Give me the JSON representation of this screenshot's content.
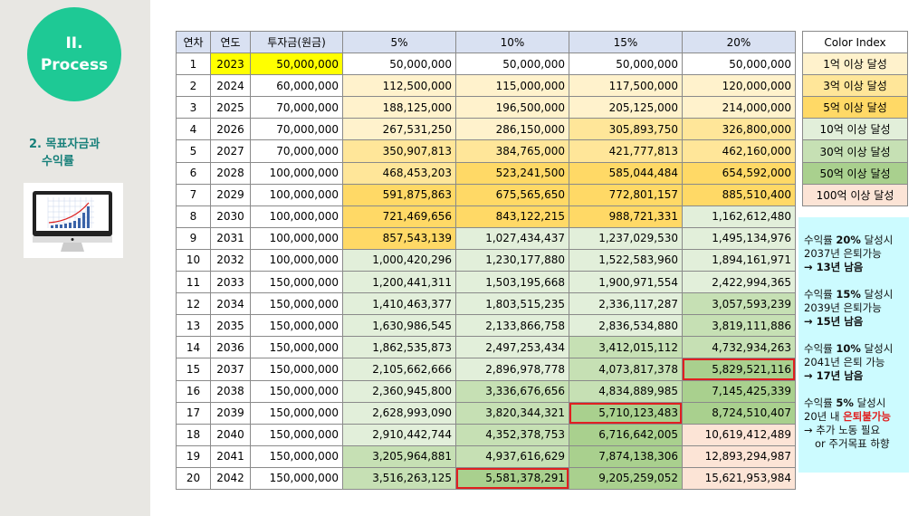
{
  "sidebar": {
    "section": "II.",
    "section_title": "Process",
    "subtitle_1": "2. 목표자금과",
    "subtitle_2": "수익률"
  },
  "table": {
    "headers": [
      "연차",
      "연도",
      "투자금(원금)",
      "5%",
      "10%",
      "15%",
      "20%"
    ],
    "rows": [
      [
        "1",
        "2023",
        "50,000,000",
        "50,000,000",
        "50,000,000",
        "50,000,000",
        "50,000,000"
      ],
      [
        "2",
        "2024",
        "60,000,000",
        "112,500,000",
        "115,000,000",
        "117,500,000",
        "120,000,000"
      ],
      [
        "3",
        "2025",
        "70,000,000",
        "188,125,000",
        "196,500,000",
        "205,125,000",
        "214,000,000"
      ],
      [
        "4",
        "2026",
        "70,000,000",
        "267,531,250",
        "286,150,000",
        "305,893,750",
        "326,800,000"
      ],
      [
        "5",
        "2027",
        "70,000,000",
        "350,907,813",
        "384,765,000",
        "421,777,813",
        "462,160,000"
      ],
      [
        "6",
        "2028",
        "100,000,000",
        "468,453,203",
        "523,241,500",
        "585,044,484",
        "654,592,000"
      ],
      [
        "7",
        "2029",
        "100,000,000",
        "591,875,863",
        "675,565,650",
        "772,801,157",
        "885,510,400"
      ],
      [
        "8",
        "2030",
        "100,000,000",
        "721,469,656",
        "843,122,215",
        "988,721,331",
        "1,162,612,480"
      ],
      [
        "9",
        "2031",
        "100,000,000",
        "857,543,139",
        "1,027,434,437",
        "1,237,029,530",
        "1,495,134,976"
      ],
      [
        "10",
        "2032",
        "100,000,000",
        "1,000,420,296",
        "1,230,177,880",
        "1,522,583,960",
        "1,894,161,971"
      ],
      [
        "11",
        "2033",
        "150,000,000",
        "1,200,441,311",
        "1,503,195,668",
        "1,900,971,554",
        "2,422,994,365"
      ],
      [
        "12",
        "2034",
        "150,000,000",
        "1,410,463,377",
        "1,803,515,235",
        "2,336,117,287",
        "3,057,593,239"
      ],
      [
        "13",
        "2035",
        "150,000,000",
        "1,630,986,545",
        "2,133,866,758",
        "2,836,534,880",
        "3,819,111,886"
      ],
      [
        "14",
        "2036",
        "150,000,000",
        "1,862,535,873",
        "2,497,253,434",
        "3,412,015,112",
        "4,732,934,263"
      ],
      [
        "15",
        "2037",
        "150,000,000",
        "2,105,662,666",
        "2,896,978,778",
        "4,073,817,378",
        "5,829,521,116"
      ],
      [
        "16",
        "2038",
        "150,000,000",
        "2,360,945,800",
        "3,336,676,656",
        "4,834,889,985",
        "7,145,425,339"
      ],
      [
        "17",
        "2039",
        "150,000,000",
        "2,628,993,090",
        "3,820,344,321",
        "5,710,123,483",
        "8,724,510,407"
      ],
      [
        "18",
        "2040",
        "150,000,000",
        "2,910,442,744",
        "4,352,378,753",
        "6,716,642,005",
        "10,619,412,489"
      ],
      [
        "19",
        "2041",
        "150,000,000",
        "3,205,964,881",
        "4,937,616,629",
        "7,874,138,306",
        "12,893,294,987"
      ],
      [
        "20",
        "2042",
        "150,000,000",
        "3,516,263,125",
        "5,581,378,291",
        "9,205,259,052",
        "15,621,953,984"
      ]
    ],
    "highlighted": [
      [
        14,
        6
      ],
      [
        16,
        5
      ],
      [
        19,
        4
      ]
    ]
  },
  "color_index": {
    "title": "Color Index",
    "items": [
      {
        "label": "1억 이상 달성",
        "min": 100000000,
        "color": "#fff2cc"
      },
      {
        "label": "3억 이상 달성",
        "min": 300000000,
        "color": "#ffe699"
      },
      {
        "label": "5억 이상 달성",
        "min": 500000000,
        "color": "#ffd966"
      },
      {
        "label": "10억 이상 달성",
        "min": 1000000000,
        "color": "#e2efda"
      },
      {
        "label": "30억 이상 달성",
        "min": 3000000000,
        "color": "#c6e0b4"
      },
      {
        "label": "50억 이상 달성",
        "min": 5000000000,
        "color": "#a9d08e"
      },
      {
        "label": "100억 이상 달성",
        "min": 10000000000,
        "color": "#fce4d6"
      }
    ]
  },
  "notes": [
    {
      "l1a": "수익률 ",
      "l1b": "20%",
      "l1c": " 달성시",
      "l2": "2037년 은퇴가능",
      "l3": "→ 13년 남음"
    },
    {
      "l1a": "수익률 ",
      "l1b": "15%",
      "l1c": " 달성시",
      "l2": "2039년 은퇴가능",
      "l3": "→ 15년 남음"
    },
    {
      "l1a": "수익률 ",
      "l1b": "10%",
      "l1c": " 달성시",
      "l2": "2041년 은퇴 가능",
      "l3": "→ 17년 남음"
    },
    {
      "l1a": "수익률 ",
      "l1b": "5%",
      "l1c": " 달성시",
      "l2a": "20년 내 ",
      "l2b": "은퇴불가능",
      "l3": "→ 추가 노동 필요",
      "l4": "or 주거목표 하향"
    }
  ],
  "colors": {
    "first_row_highlight": "#ffff00",
    "header_bg": "#d9e1f2",
    "accent": "#1ec995"
  }
}
